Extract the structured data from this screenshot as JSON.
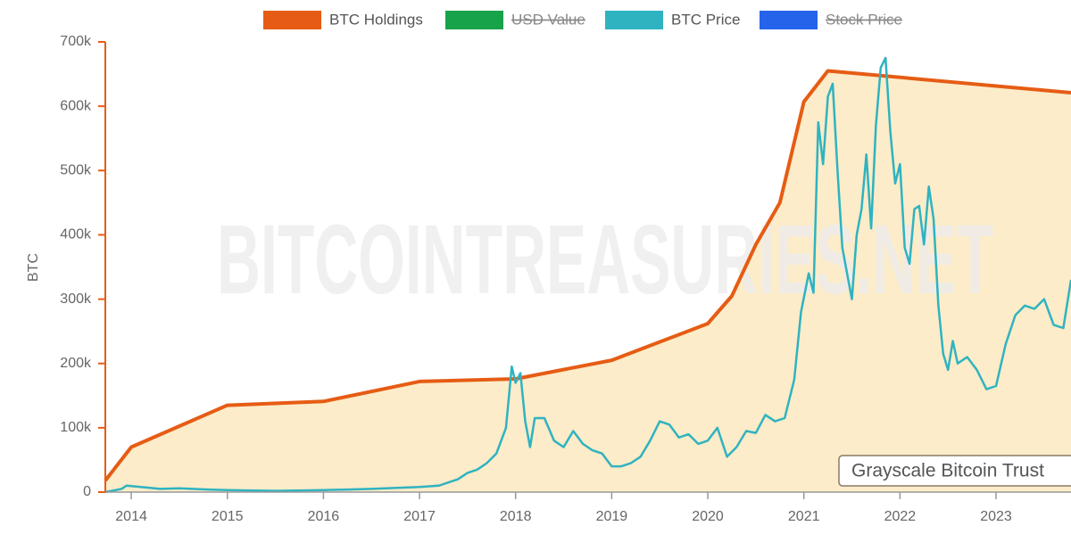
{
  "chart_data": {
    "type": "line",
    "y_label": "BTC",
    "watermark": "BITCOINTREASURIES.NET",
    "annotation": "Grayscale Bitcoin Trust",
    "xlim": [
      2013.73,
      2023.78
    ],
    "xticks": [
      2014,
      2015,
      2016,
      2017,
      2018,
      2019,
      2020,
      2021,
      2022,
      2023
    ],
    "ylim": [
      0,
      700000
    ],
    "yticks": [
      {
        "value": 0,
        "label": "0"
      },
      {
        "value": 100000,
        "label": "100k"
      },
      {
        "value": 200000,
        "label": "200k"
      },
      {
        "value": 300000,
        "label": "300k"
      },
      {
        "value": 400000,
        "label": "400k"
      },
      {
        "value": 500000,
        "label": "500k"
      },
      {
        "value": 600000,
        "label": "600k"
      },
      {
        "value": 700000,
        "label": "700k"
      }
    ],
    "series": [
      {
        "name": "BTC Holdings",
        "color": "#e65c14",
        "fill": "#fcecc9",
        "hidden": false,
        "x": [
          2013.73,
          2014.0,
          2015.0,
          2016.0,
          2017.0,
          2018.0,
          2019.0,
          2020.0,
          2020.25,
          2020.5,
          2020.75,
          2021.0,
          2021.25,
          2023.78
        ],
        "values": [
          18000,
          70000,
          135000,
          141000,
          172000,
          176000,
          205000,
          262000,
          305000,
          385000,
          450000,
          607000,
          655000,
          621000
        ]
      },
      {
        "name": "USD Value",
        "color": "#16a34a",
        "hidden": true
      },
      {
        "name": "BTC Price",
        "color": "#2fb3c0",
        "hidden": false,
        "x": [
          2013.73,
          2013.9,
          2013.95,
          2014.1,
          2014.3,
          2014.5,
          2014.8,
          2015.0,
          2015.5,
          2016.0,
          2016.5,
          2017.0,
          2017.2,
          2017.4,
          2017.5,
          2017.6,
          2017.7,
          2017.8,
          2017.9,
          2017.96,
          2018.0,
          2018.05,
          2018.1,
          2018.15,
          2018.2,
          2018.3,
          2018.4,
          2018.5,
          2018.6,
          2018.7,
          2018.8,
          2018.9,
          2019.0,
          2019.1,
          2019.2,
          2019.3,
          2019.4,
          2019.5,
          2019.6,
          2019.7,
          2019.8,
          2019.9,
          2020.0,
          2020.1,
          2020.2,
          2020.3,
          2020.4,
          2020.5,
          2020.6,
          2020.7,
          2020.8,
          2020.9,
          2020.97,
          2021.05,
          2021.1,
          2021.15,
          2021.2,
          2021.25,
          2021.3,
          2021.35,
          2021.4,
          2021.45,
          2021.5,
          2021.55,
          2021.6,
          2021.65,
          2021.7,
          2021.75,
          2021.8,
          2021.85,
          2021.9,
          2021.95,
          2022.0,
          2022.05,
          2022.1,
          2022.15,
          2022.2,
          2022.25,
          2022.3,
          2022.35,
          2022.4,
          2022.45,
          2022.5,
          2022.55,
          2022.6,
          2022.7,
          2022.8,
          2022.9,
          2023.0,
          2023.1,
          2023.2,
          2023.3,
          2023.4,
          2023.5,
          2023.6,
          2023.7,
          2023.78
        ],
        "values": [
          0,
          5000,
          10000,
          8000,
          5000,
          6000,
          4000,
          3000,
          2000,
          3000,
          5000,
          8000,
          10000,
          20000,
          30000,
          35000,
          45000,
          60000,
          100000,
          195000,
          170000,
          185000,
          110000,
          70000,
          115000,
          115000,
          80000,
          70000,
          95000,
          75000,
          65000,
          60000,
          40000,
          40000,
          45000,
          55000,
          80000,
          110000,
          105000,
          85000,
          90000,
          75000,
          80000,
          100000,
          55000,
          70000,
          95000,
          92000,
          120000,
          110000,
          115000,
          175000,
          280000,
          340000,
          310000,
          575000,
          510000,
          615000,
          635000,
          500000,
          380000,
          340000,
          300000,
          400000,
          440000,
          525000,
          410000,
          570000,
          660000,
          675000,
          560000,
          480000,
          510000,
          380000,
          355000,
          440000,
          445000,
          385000,
          475000,
          425000,
          290000,
          215000,
          190000,
          235000,
          200000,
          210000,
          190000,
          160000,
          165000,
          230000,
          275000,
          290000,
          285000,
          300000,
          260000,
          255000,
          330000
        ]
      },
      {
        "name": "Stock Price",
        "color": "#2563eb",
        "hidden": true
      }
    ]
  }
}
